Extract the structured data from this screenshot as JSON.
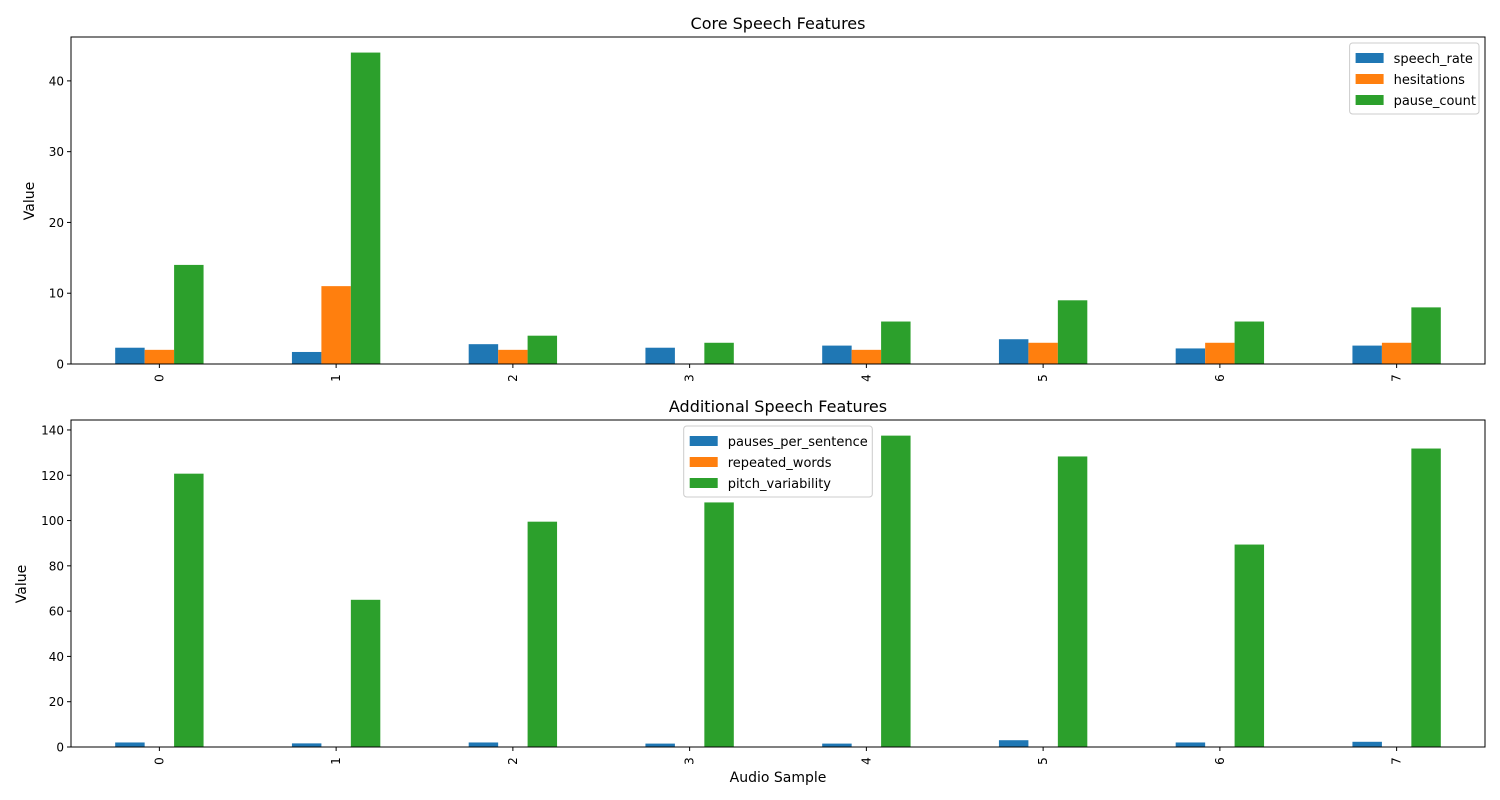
{
  "colors": {
    "blue": "#1f77b4",
    "orange": "#ff7f0e",
    "green": "#2ca02c"
  },
  "chart_data": [
    {
      "type": "bar",
      "title": "Core Speech Features",
      "xlabel": "",
      "ylabel": "Value",
      "categories": [
        "0",
        "1",
        "2",
        "3",
        "4",
        "5",
        "6",
        "7"
      ],
      "ylim": [
        0,
        46.2
      ],
      "yticks": [
        0,
        10,
        20,
        30,
        40
      ],
      "legend_position": "upper right",
      "grid": false,
      "series": [
        {
          "name": "speech_rate",
          "color": "#1f77b4",
          "values": [
            2.3,
            1.7,
            2.8,
            2.3,
            2.6,
            3.5,
            2.2,
            2.6
          ]
        },
        {
          "name": "hesitations",
          "color": "#ff7f0e",
          "values": [
            2,
            11,
            2,
            0,
            2,
            3,
            3,
            3
          ]
        },
        {
          "name": "pause_count",
          "color": "#2ca02c",
          "values": [
            14,
            44,
            4,
            3,
            6,
            9,
            6,
            8
          ]
        }
      ]
    },
    {
      "type": "bar",
      "title": "Additional Speech Features",
      "xlabel": "Audio Sample",
      "ylabel": "Value",
      "categories": [
        "0",
        "1",
        "2",
        "3",
        "4",
        "5",
        "6",
        "7"
      ],
      "ylim": [
        0,
        144.4
      ],
      "yticks": [
        0,
        20,
        40,
        60,
        80,
        100,
        120,
        140
      ],
      "legend_position": "upper center",
      "grid": false,
      "series": [
        {
          "name": "pauses_per_sentence",
          "color": "#1f77b4",
          "values": [
            2.0,
            1.6,
            2.0,
            1.5,
            1.5,
            3.0,
            2.0,
            2.3
          ]
        },
        {
          "name": "repeated_words",
          "color": "#ff7f0e",
          "values": [
            0,
            0,
            0,
            0,
            0,
            0,
            0,
            0
          ]
        },
        {
          "name": "pitch_variability",
          "color": "#2ca02c",
          "values": [
            120.7,
            65.0,
            99.5,
            108.0,
            137.5,
            128.3,
            89.4,
            131.8
          ]
        }
      ]
    }
  ]
}
